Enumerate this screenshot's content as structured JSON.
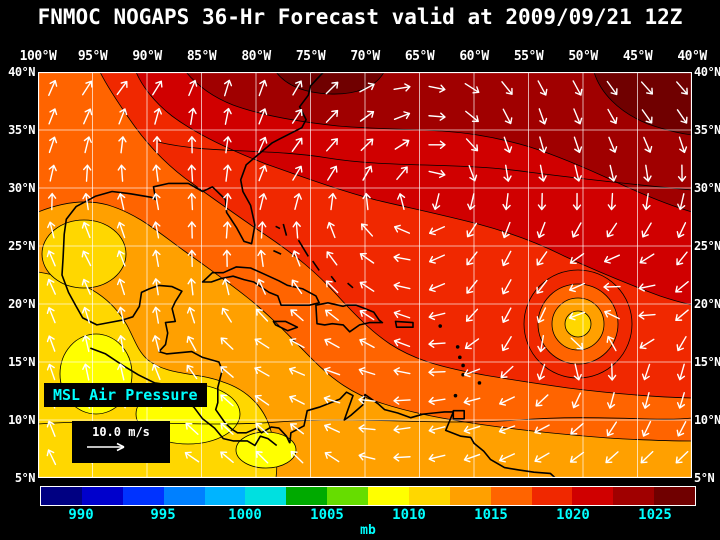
{
  "title": "FNMOC NOGAPS 36-Hr Forecast valid at 2009/09/21 12Z",
  "axes": {
    "lon_ticks": [
      100,
      95,
      90,
      85,
      80,
      75,
      70,
      65,
      60,
      55,
      50,
      45,
      40
    ],
    "lon_labels": [
      "100°W",
      "95°W",
      "90°W",
      "85°W",
      "80°W",
      "75°W",
      "70°W",
      "65°W",
      "60°W",
      "55°W",
      "50°W",
      "45°W",
      "40°W"
    ],
    "lat_ticks": [
      40,
      35,
      30,
      25,
      20,
      15,
      10,
      5
    ],
    "lat_labels": [
      "40°N",
      "35°N",
      "30°N",
      "25°N",
      "20°N",
      "15°N",
      "10°N",
      "5°N"
    ]
  },
  "overlay": {
    "field_label": "MSL Air Pressure",
    "wind_scale_label": "10.0 m/s"
  },
  "colorbar": {
    "unit": "mb",
    "tick_labels": [
      "990",
      "995",
      "1000",
      "1005",
      "1010",
      "1015",
      "1020",
      "1025"
    ],
    "segment_colors": [
      "#000082",
      "#0000CC",
      "#0033FF",
      "#0080FF",
      "#00B4FF",
      "#00E0E0",
      "#00AA00",
      "#66DD00",
      "#FFFF00",
      "#FFD700",
      "#FFA000",
      "#FF6400",
      "#F02800",
      "#D00000",
      "#A00000",
      "#700000"
    ]
  },
  "colors": {
    "background": "#000000",
    "title_text": "#FFFFFF",
    "axis_text": "#FFFFFF",
    "legend_text": "#00FFFF",
    "wind_arrow": "#FFFFFF"
  }
}
